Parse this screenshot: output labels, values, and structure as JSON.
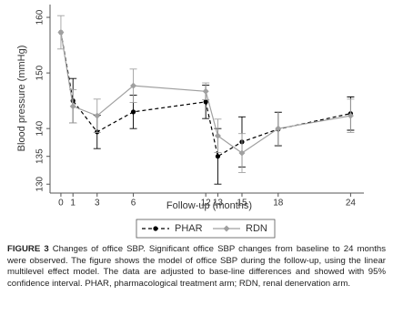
{
  "chart_data": {
    "type": "line",
    "y_label": "Blood pressure (mmHg)",
    "x_label": "Follow-up (months)",
    "x": [
      0,
      1,
      3,
      6,
      12,
      13,
      15,
      18,
      24
    ],
    "xlim": [
      -0.9,
      25.1
    ],
    "xticks": [
      0,
      1,
      3,
      6,
      12,
      13,
      15,
      18,
      24
    ],
    "ylim": [
      128.4,
      162.3
    ],
    "yticks": [
      160,
      150,
      140,
      135,
      130
    ],
    "legend": "bottom",
    "series": [
      {
        "name": "PHAR",
        "color": "#000000",
        "dash": true,
        "values": [
          157.3,
          145,
          139.4,
          143,
          144.8,
          135,
          137.6,
          139.9,
          142.7
        ],
        "errors": [
          0,
          4,
          3,
          3,
          3,
          5,
          4.5,
          3,
          3
        ]
      },
      {
        "name": "RDN",
        "color": "#a0a0a0",
        "dash": false,
        "values": [
          157.3,
          144,
          142.3,
          147.7,
          146.7,
          138.7,
          135.6,
          140,
          142.3
        ],
        "errors": [
          3,
          3,
          3,
          3,
          1.5,
          3,
          3.5,
          3,
          3
        ]
      }
    ]
  },
  "caption": {
    "label": "FIGURE 3",
    "text": "Changes of office SBP. Significant office SBP changes from baseline to 24 months were observed. The figure shows the model of office SBP during the follow-up, using the linear multilevel effect model. The data are adjusted to base-line differences and showed with 95% confidence interval. PHAR, pharmacological treatment arm; RDN, renal denervation arm."
  }
}
